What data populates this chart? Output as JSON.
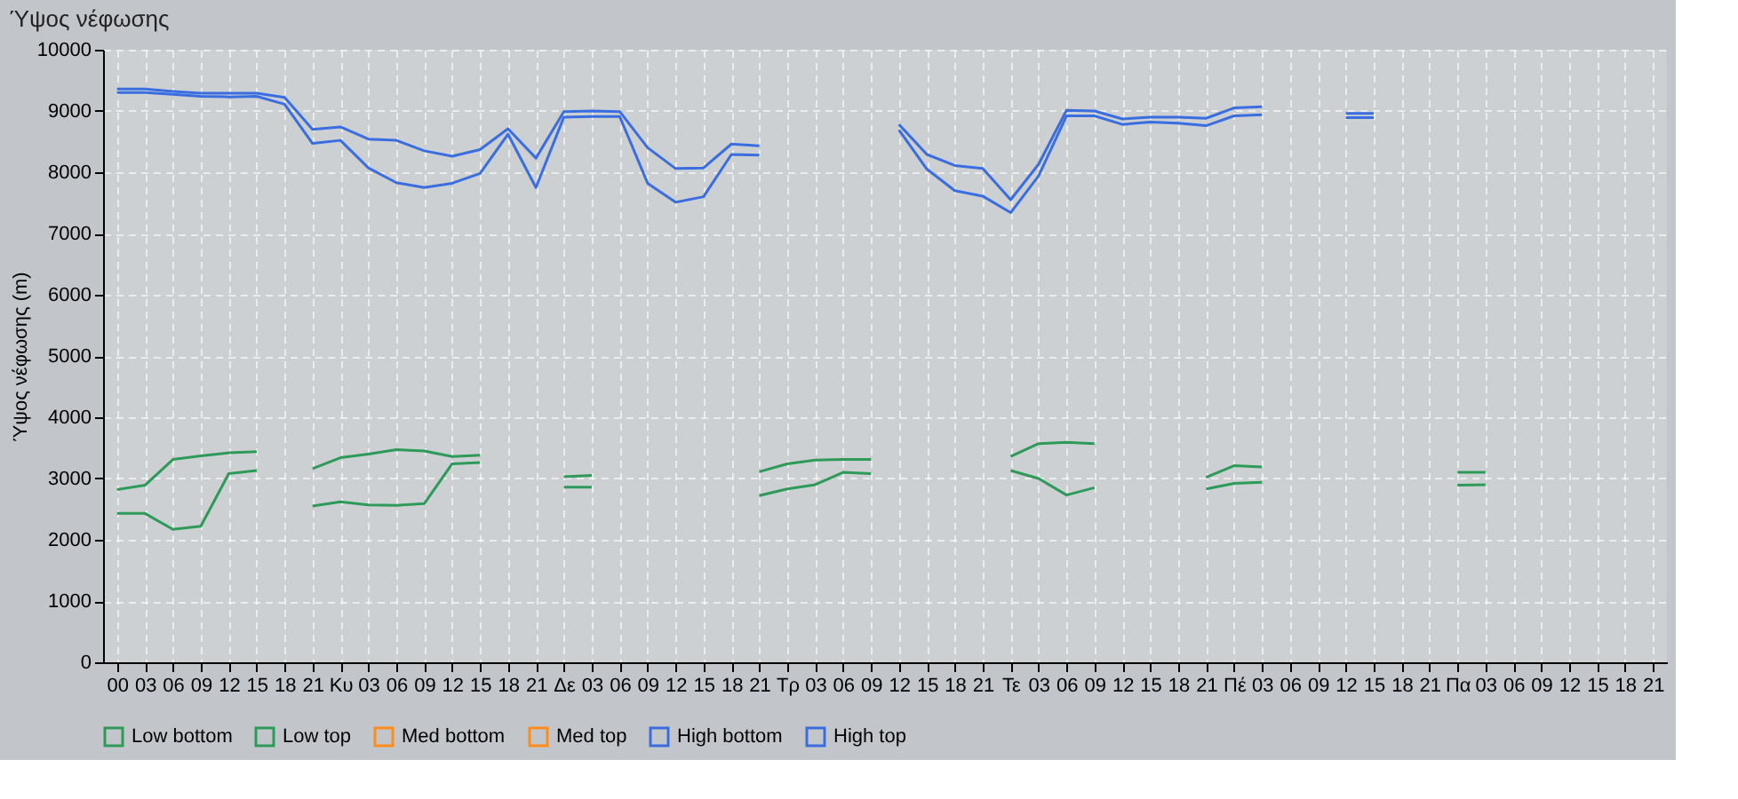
{
  "chart_data": {
    "type": "line",
    "title": "Ύψος νέφωσης",
    "ylabel": "Ύψος νέφωσης (m)",
    "categories": [
      "00",
      "03",
      "06",
      "09",
      "12",
      "15",
      "18",
      "21",
      "Κυ",
      "03",
      "06",
      "09",
      "12",
      "15",
      "18",
      "21",
      "Δε",
      "03",
      "06",
      "09",
      "12",
      "15",
      "18",
      "21",
      "Τρ",
      "03",
      "06",
      "09",
      "12",
      "15",
      "18",
      "21",
      "Τε",
      "03",
      "06",
      "09",
      "12",
      "15",
      "18",
      "21",
      "Πέ",
      "03",
      "06",
      "09",
      "12",
      "15",
      "18",
      "21",
      "Πα",
      "03",
      "06",
      "09",
      "12",
      "15",
      "18",
      "21"
    ],
    "ylim": [
      0,
      10000
    ],
    "yticks": [
      0,
      1000,
      2000,
      3000,
      4000,
      5000,
      6000,
      7000,
      8000,
      9000,
      10000
    ],
    "grid": true,
    "legend": "bottom",
    "series": [
      {
        "name": "Low bottom",
        "color": "#2e9a5a",
        "values": [
          2430,
          2430,
          2170,
          2220,
          3080,
          3130,
          null,
          2550,
          2620,
          2570,
          2560,
          2590,
          3240,
          3260,
          null,
          null,
          2860,
          2860,
          null,
          null,
          null,
          null,
          null,
          2720,
          2830,
          2900,
          3100,
          3080,
          null,
          null,
          null,
          null,
          3130,
          3000,
          2730,
          2850,
          null,
          null,
          null,
          2830,
          2920,
          2940,
          null,
          null,
          null,
          null,
          null,
          null,
          2890,
          2900,
          null,
          null,
          null,
          null,
          null,
          null
        ]
      },
      {
        "name": "Low top",
        "color": "#2e9a5a",
        "values": [
          2820,
          2890,
          3310,
          3370,
          3420,
          3440,
          null,
          3160,
          3340,
          3400,
          3470,
          3450,
          3360,
          3380,
          null,
          null,
          3030,
          3050,
          null,
          null,
          null,
          null,
          null,
          3110,
          3240,
          3300,
          3310,
          3310,
          null,
          null,
          null,
          null,
          3360,
          3570,
          3590,
          3570,
          null,
          null,
          null,
          3020,
          3210,
          3190,
          null,
          null,
          null,
          null,
          null,
          null,
          3100,
          3100,
          null,
          null,
          null,
          null,
          null,
          null
        ]
      },
      {
        "name": "Med bottom",
        "color": "#ff8c1a",
        "values": [
          null,
          null,
          null,
          null,
          null,
          null,
          null,
          null,
          null,
          null,
          null,
          null,
          null,
          null,
          null,
          null,
          null,
          null,
          null,
          null,
          null,
          null,
          null,
          null,
          null,
          null,
          null,
          null,
          null,
          null,
          null,
          null,
          null,
          null,
          null,
          null,
          null,
          null,
          null,
          null,
          null,
          null,
          null,
          null,
          null,
          null,
          null,
          null,
          null,
          null,
          null,
          null,
          null,
          null,
          null,
          null
        ]
      },
      {
        "name": "Med top",
        "color": "#ff8c1a",
        "values": [
          null,
          null,
          null,
          null,
          null,
          null,
          null,
          null,
          null,
          null,
          null,
          null,
          null,
          null,
          null,
          null,
          null,
          null,
          null,
          null,
          null,
          null,
          null,
          null,
          null,
          null,
          null,
          null,
          null,
          null,
          null,
          null,
          null,
          null,
          null,
          null,
          null,
          null,
          null,
          null,
          null,
          null,
          null,
          null,
          null,
          null,
          null,
          null,
          null,
          null,
          null,
          null,
          null,
          null,
          null,
          null
        ]
      },
      {
        "name": "High bottom",
        "color": "#3a6ee0",
        "values": [
          9300,
          9300,
          9270,
          9240,
          9230,
          9240,
          9110,
          8470,
          8520,
          8070,
          7830,
          7750,
          7820,
          7980,
          8620,
          7750,
          8900,
          8910,
          8910,
          7820,
          7510,
          7600,
          8290,
          8280,
          null,
          null,
          null,
          null,
          8690,
          8050,
          7700,
          7610,
          7340,
          7940,
          8920,
          8920,
          8780,
          8820,
          8800,
          8760,
          8920,
          8940,
          null,
          null,
          8890,
          8890,
          null,
          null,
          null,
          null,
          null,
          null,
          null,
          null,
          null,
          null
        ]
      },
      {
        "name": "High top",
        "color": "#3a6ee0",
        "values": [
          9360,
          9360,
          9320,
          9290,
          9290,
          9290,
          9220,
          8700,
          8740,
          8540,
          8520,
          8350,
          8260,
          8370,
          8710,
          8230,
          8990,
          9000,
          8990,
          8400,
          8060,
          8070,
          8460,
          8430,
          null,
          null,
          null,
          null,
          8780,
          8290,
          8110,
          8060,
          7550,
          8130,
          9010,
          9000,
          8870,
          8900,
          8900,
          8880,
          9050,
          9070,
          null,
          null,
          8960,
          8960,
          null,
          null,
          null,
          null,
          null,
          null,
          null,
          null,
          null,
          null
        ]
      }
    ]
  }
}
